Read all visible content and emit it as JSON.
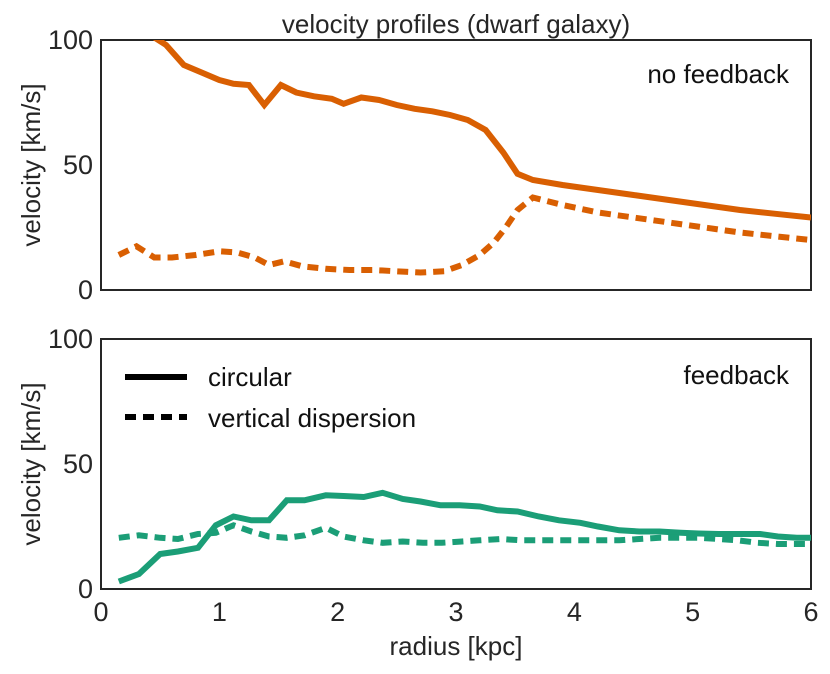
{
  "chart_data": [
    {
      "type": "line",
      "title": "velocity profiles (dwarf galaxy)",
      "annotation": "no feedback",
      "ylabel": "velocity [km/s]",
      "xlabel": "",
      "xlim": [
        0,
        6
      ],
      "ylim": [
        0,
        100
      ],
      "yticks": [
        "0",
        "50",
        "100"
      ],
      "grid": false,
      "color": "#d95f02",
      "series": [
        {
          "style": "solid",
          "points": [
            [
              0.15,
              108
            ],
            [
              0.3,
              105
            ],
            [
              0.45,
              101
            ],
            [
              0.55,
              98
            ],
            [
              0.7,
              90
            ],
            [
              0.85,
              87
            ],
            [
              1.0,
              84
            ],
            [
              1.12,
              82.5
            ],
            [
              1.25,
              82
            ],
            [
              1.38,
              74
            ],
            [
              1.52,
              82
            ],
            [
              1.65,
              79
            ],
            [
              1.8,
              77.5
            ],
            [
              1.95,
              76.5
            ],
            [
              2.05,
              74.5
            ],
            [
              2.2,
              77
            ],
            [
              2.35,
              76
            ],
            [
              2.5,
              74
            ],
            [
              2.65,
              72.5
            ],
            [
              2.8,
              71.5
            ],
            [
              2.95,
              70
            ],
            [
              3.1,
              68
            ],
            [
              3.25,
              64
            ],
            [
              3.4,
              55
            ],
            [
              3.52,
              46.5
            ],
            [
              3.65,
              44
            ],
            [
              3.9,
              42
            ],
            [
              4.2,
              40
            ],
            [
              4.5,
              38
            ],
            [
              4.8,
              36
            ],
            [
              5.1,
              34
            ],
            [
              5.4,
              32
            ],
            [
              5.7,
              30.5
            ],
            [
              6.0,
              29
            ]
          ]
        },
        {
          "style": "dashed",
          "points": [
            [
              0.15,
              14
            ],
            [
              0.3,
              17.5
            ],
            [
              0.45,
              13
            ],
            [
              0.6,
              13
            ],
            [
              0.8,
              14
            ],
            [
              1.0,
              15.5
            ],
            [
              1.15,
              15
            ],
            [
              1.3,
              13
            ],
            [
              1.42,
              10
            ],
            [
              1.55,
              11.5
            ],
            [
              1.7,
              9.5
            ],
            [
              1.9,
              8.5
            ],
            [
              2.1,
              8
            ],
            [
              2.3,
              8
            ],
            [
              2.5,
              7.5
            ],
            [
              2.7,
              7
            ],
            [
              2.9,
              7.5
            ],
            [
              3.05,
              10
            ],
            [
              3.2,
              14
            ],
            [
              3.32,
              19
            ],
            [
              3.42,
              25
            ],
            [
              3.52,
              32
            ],
            [
              3.65,
              37
            ],
            [
              3.9,
              34
            ],
            [
              4.2,
              31
            ],
            [
              4.5,
              29
            ],
            [
              4.8,
              27
            ],
            [
              5.1,
              25
            ],
            [
              5.4,
              23
            ],
            [
              5.7,
              21.5
            ],
            [
              6.0,
              20
            ]
          ]
        }
      ]
    },
    {
      "type": "line",
      "title": "",
      "annotation": "feedback",
      "ylabel": "velocity [km/s]",
      "xlabel": "radius [kpc]",
      "xlim": [
        0,
        6
      ],
      "ylim": [
        0,
        100
      ],
      "xticks": [
        "0",
        "1",
        "2",
        "3",
        "4",
        "5",
        "6"
      ],
      "yticks": [
        "0",
        "50",
        "100"
      ],
      "grid": false,
      "color": "#1b9e77",
      "legend": {
        "position": "upper-left",
        "entries": [
          {
            "name": "circular",
            "style": "solid"
          },
          {
            "name": "vertical dispersion",
            "style": "dashed"
          }
        ]
      },
      "series": [
        {
          "style": "solid",
          "points": [
            [
              0.15,
              3
            ],
            [
              0.32,
              6
            ],
            [
              0.5,
              14
            ],
            [
              0.65,
              15
            ],
            [
              0.82,
              16.5
            ],
            [
              0.97,
              25.5
            ],
            [
              1.12,
              29
            ],
            [
              1.27,
              27.5
            ],
            [
              1.42,
              27.5
            ],
            [
              1.57,
              35.5
            ],
            [
              1.72,
              35.5
            ],
            [
              1.9,
              37.5
            ],
            [
              2.05,
              37.2
            ],
            [
              2.22,
              36.8
            ],
            [
              2.38,
              38.5
            ],
            [
              2.55,
              36
            ],
            [
              2.7,
              35
            ],
            [
              2.87,
              33.5
            ],
            [
              3.03,
              33.5
            ],
            [
              3.2,
              33
            ],
            [
              3.35,
              31.5
            ],
            [
              3.52,
              31
            ],
            [
              3.7,
              29
            ],
            [
              3.87,
              27.5
            ],
            [
              4.05,
              26.5
            ],
            [
              4.2,
              25
            ],
            [
              4.38,
              23.5
            ],
            [
              4.55,
              23
            ],
            [
              4.72,
              23
            ],
            [
              4.9,
              22.5
            ],
            [
              5.05,
              22.2
            ],
            [
              5.22,
              22
            ],
            [
              5.4,
              22
            ],
            [
              5.57,
              22
            ],
            [
              5.72,
              21
            ],
            [
              5.88,
              20.5
            ],
            [
              6.0,
              20.5
            ]
          ]
        },
        {
          "style": "dashed",
          "points": [
            [
              0.15,
              20.5
            ],
            [
              0.32,
              21.5
            ],
            [
              0.5,
              20.5
            ],
            [
              0.65,
              20
            ],
            [
              0.82,
              22
            ],
            [
              0.97,
              22.5
            ],
            [
              1.12,
              25.5
            ],
            [
              1.27,
              23
            ],
            [
              1.42,
              21
            ],
            [
              1.57,
              20.5
            ],
            [
              1.72,
              21.5
            ],
            [
              1.9,
              24.5
            ],
            [
              2.05,
              21
            ],
            [
              2.22,
              19.5
            ],
            [
              2.38,
              18.5
            ],
            [
              2.55,
              19
            ],
            [
              2.72,
              18.5
            ],
            [
              2.88,
              18.5
            ],
            [
              3.05,
              19
            ],
            [
              3.2,
              19.5
            ],
            [
              3.38,
              20
            ],
            [
              3.55,
              19.5
            ],
            [
              3.72,
              19.5
            ],
            [
              3.9,
              19.5
            ],
            [
              4.05,
              19.5
            ],
            [
              4.22,
              19.5
            ],
            [
              4.38,
              19.5
            ],
            [
              4.55,
              20
            ],
            [
              4.72,
              20.5
            ],
            [
              4.9,
              20.5
            ],
            [
              5.05,
              20.5
            ],
            [
              5.22,
              20
            ],
            [
              5.38,
              19.5
            ],
            [
              5.55,
              18.5
            ],
            [
              5.72,
              18
            ],
            [
              5.88,
              18
            ],
            [
              6.0,
              18
            ]
          ]
        }
      ]
    }
  ]
}
